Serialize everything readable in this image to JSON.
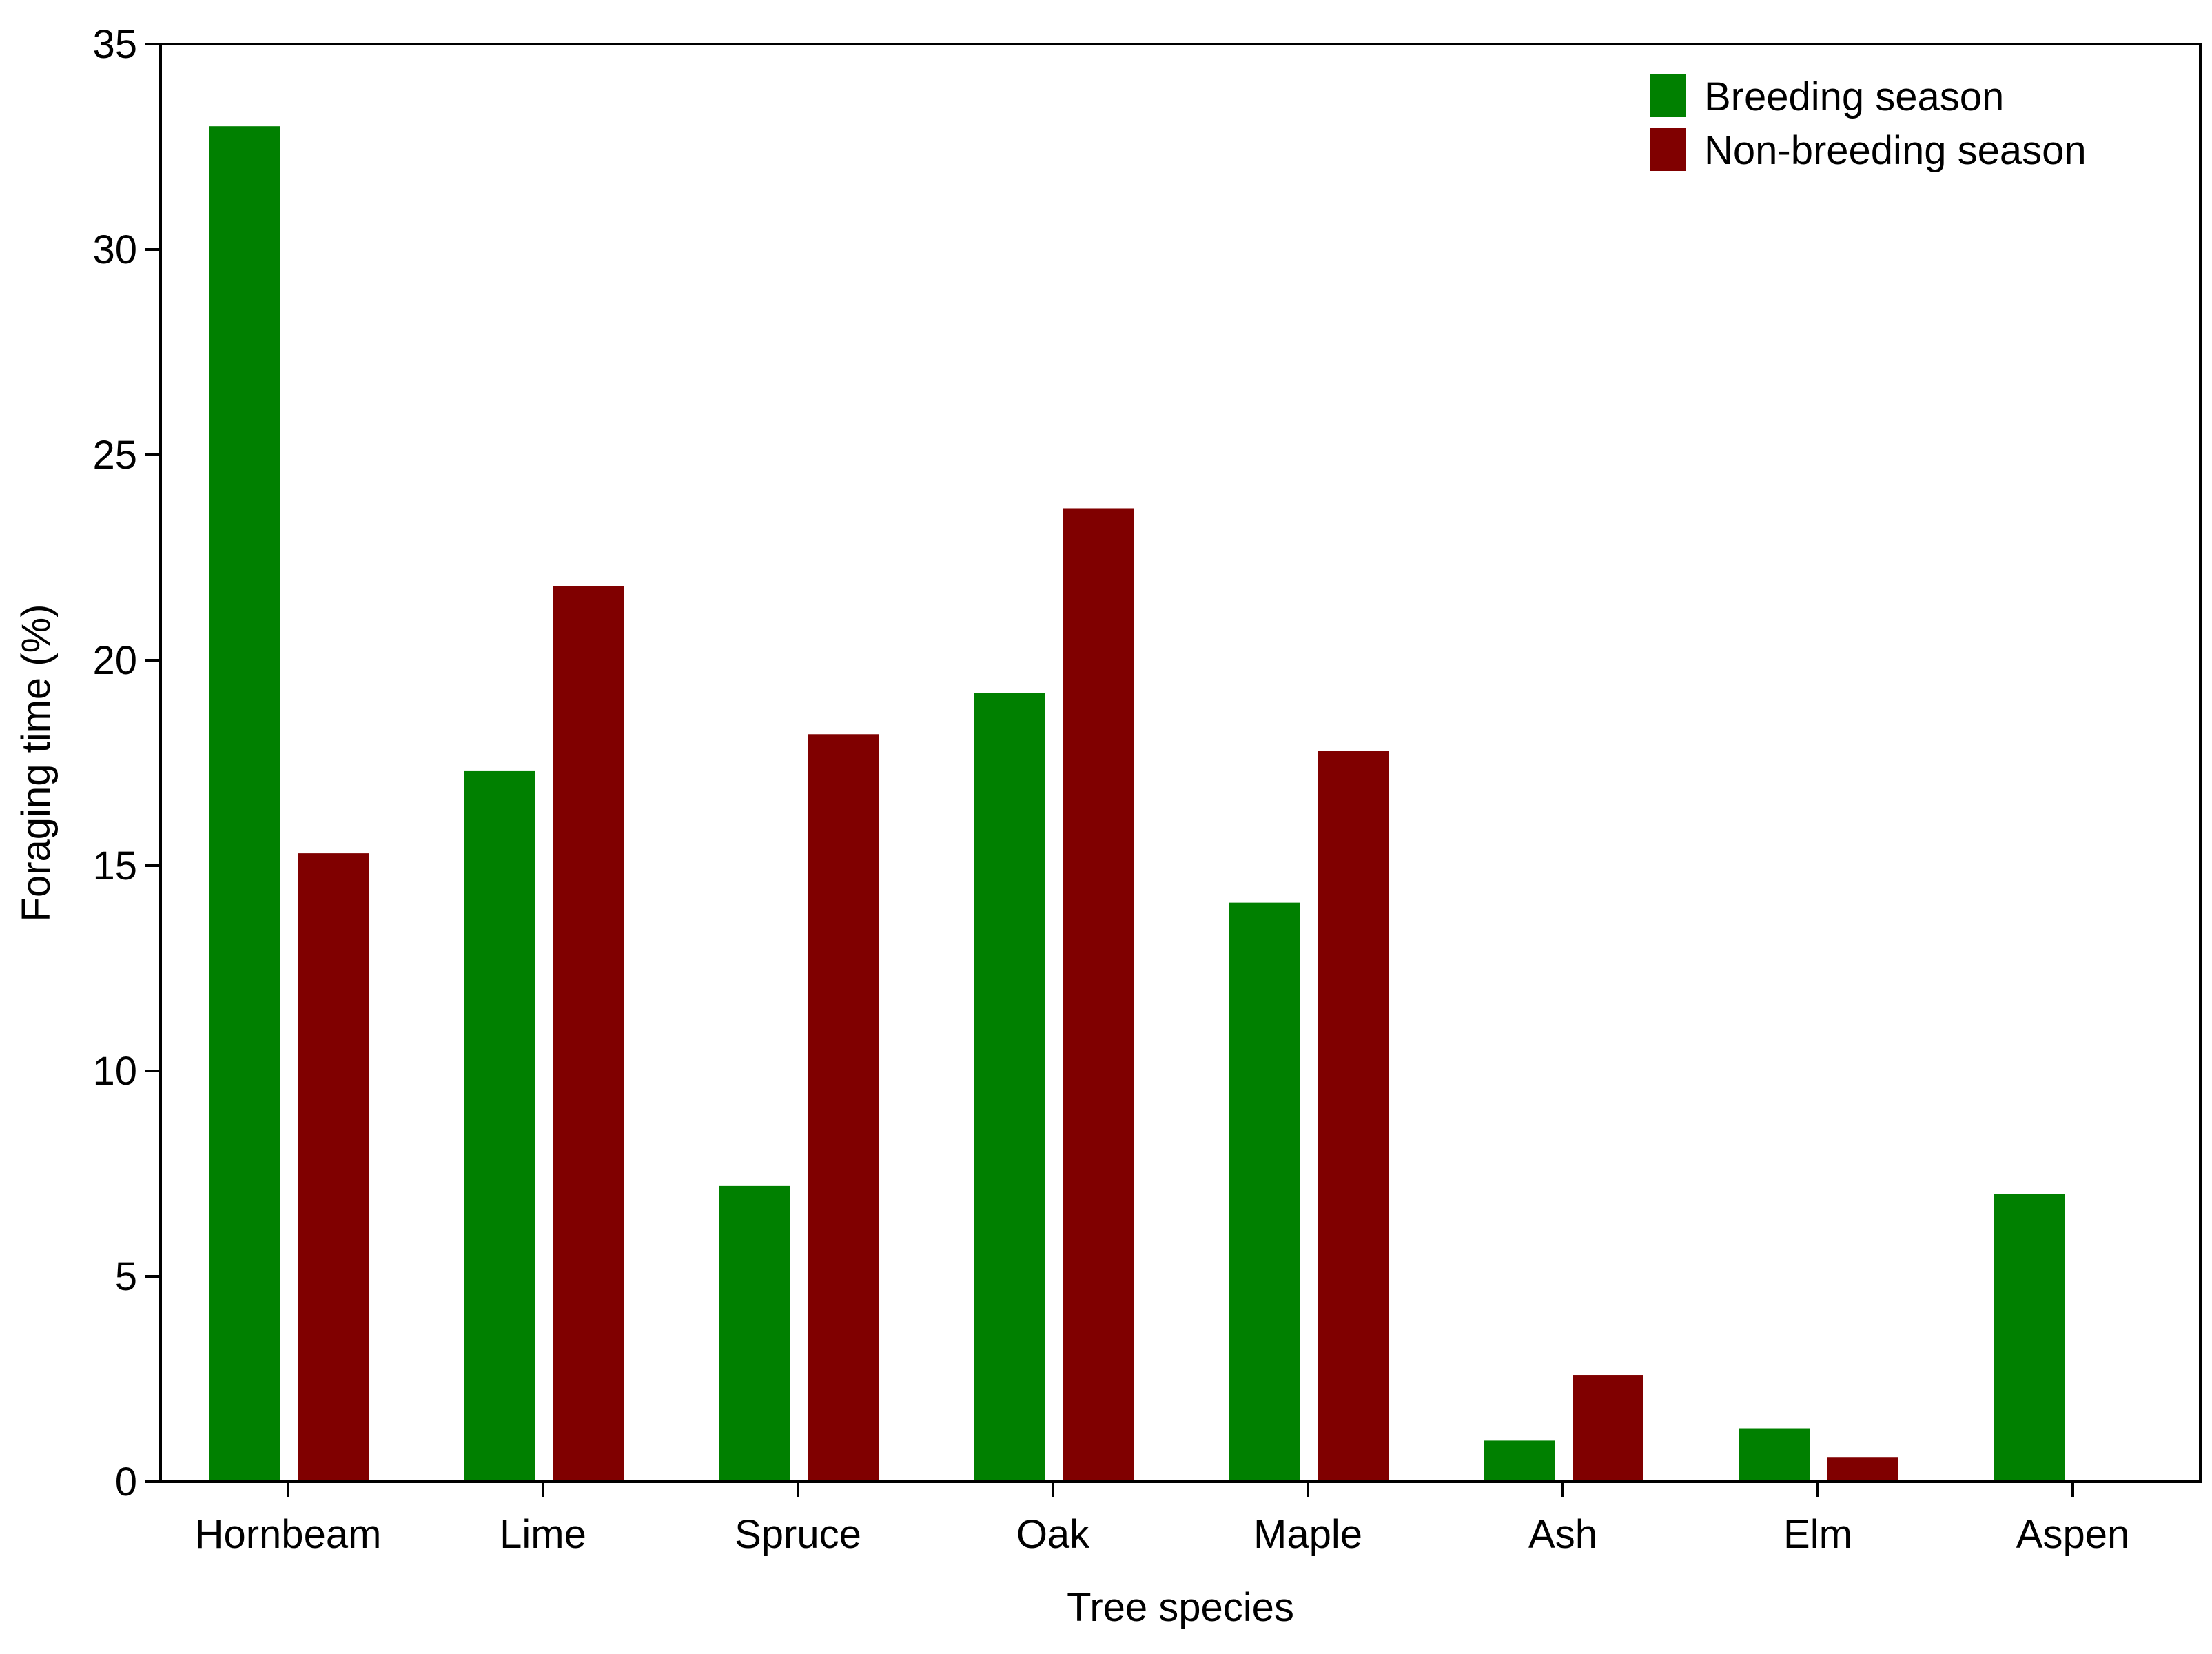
{
  "chart_data": {
    "type": "bar",
    "title": "",
    "xlabel": "Tree species",
    "ylabel": "Foraging time (%)",
    "categories": [
      "Hornbeam",
      "Lime",
      "Spruce",
      "Oak",
      "Maple",
      "Ash",
      "Elm",
      "Aspen"
    ],
    "series": [
      {
        "name": "Breeding season",
        "color": "#008000",
        "values": [
          33.0,
          17.3,
          7.2,
          19.2,
          14.1,
          1.0,
          1.3,
          7.0
        ]
      },
      {
        "name": "Non-breeding season",
        "color": "#800000",
        "values": [
          15.3,
          21.8,
          18.2,
          23.7,
          17.8,
          2.6,
          0.6,
          0
        ]
      }
    ],
    "ylim": [
      0,
      35
    ],
    "yticks": [
      "0",
      "5",
      "10",
      "15",
      "20",
      "25",
      "30",
      "35"
    ],
    "grid": false,
    "legend_position": "top-right"
  }
}
